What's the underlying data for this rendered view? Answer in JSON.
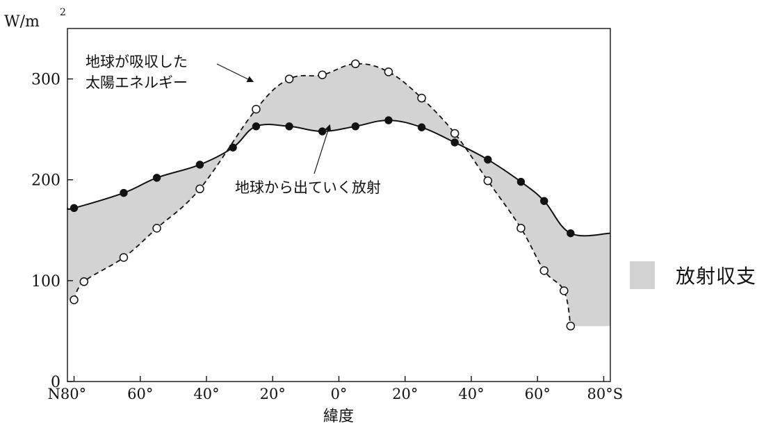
{
  "chart_data": {
    "type": "line",
    "ylabel_unit": "W/m",
    "ylabel_exponent": "2",
    "xlabel": "緯度",
    "x_tick_labels": [
      "N80°",
      "60°",
      "40°",
      "20°",
      "0°",
      "20°",
      "40°",
      "60°",
      "80°S"
    ],
    "x_tick_values": [
      80,
      60,
      40,
      20,
      0,
      -20,
      -40,
      -60,
      -80
    ],
    "y_ticks": [
      0,
      100,
      200,
      300
    ],
    "xlim": [
      82,
      -82
    ],
    "ylim": [
      0,
      350
    ],
    "grid": false,
    "fill": {
      "between": [
        "absorbed",
        "emitted"
      ],
      "color": "#d3d3d3",
      "legend_label": "放射収支"
    },
    "series": [
      {
        "id": "absorbed",
        "name": "地球が吸収した太陽エネルギー",
        "label_lines": [
          "地球が吸収した",
          "太陽エネルギー"
        ],
        "line_style": "dashed",
        "marker": "open-circle",
        "x": [
          80,
          77,
          65,
          55,
          42,
          25,
          15,
          5,
          -5,
          -15,
          -25,
          -35,
          -45,
          -55,
          -62,
          -68,
          -70
        ],
        "y": [
          81,
          99,
          123,
          152,
          191,
          270,
          300,
          304,
          315,
          307,
          281,
          246,
          199,
          152,
          110,
          90,
          55
        ]
      },
      {
        "id": "emitted",
        "name": "地球から出ていく放射",
        "label_lines": [
          "地球から出ていく放射"
        ],
        "line_style": "solid",
        "marker": "filled-circle",
        "x": [
          80,
          65,
          55,
          42,
          32,
          25,
          15,
          5,
          -5,
          -15,
          -25,
          -35,
          -45,
          -55,
          -62,
          -70
        ],
        "y": [
          172,
          187,
          202,
          215,
          232,
          253,
          253,
          248,
          253,
          259,
          252,
          237,
          220,
          198,
          179,
          147
        ]
      }
    ]
  }
}
